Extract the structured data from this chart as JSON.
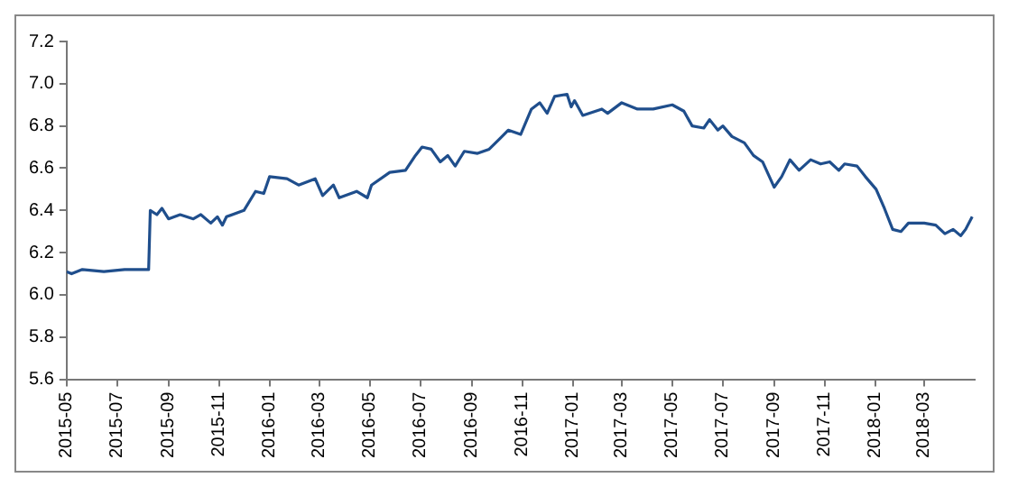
{
  "chart_data": {
    "type": "line",
    "x": [
      "2015-05-01",
      "2015-05-07",
      "2015-05-20",
      "2015-06-15",
      "2015-07-10",
      "2015-08-08",
      "2015-08-10",
      "2015-08-18",
      "2015-08-24",
      "2015-09-01",
      "2015-09-15",
      "2015-10-01",
      "2015-10-10",
      "2015-10-22",
      "2015-10-30",
      "2015-11-05",
      "2015-11-10",
      "2015-12-01",
      "2015-12-15",
      "2015-12-25",
      "2016-01-01",
      "2016-01-22",
      "2016-02-05",
      "2016-02-25",
      "2016-03-05",
      "2016-03-18",
      "2016-03-25",
      "2016-04-15",
      "2016-04-28",
      "2016-05-03",
      "2016-05-25",
      "2016-06-13",
      "2016-06-25",
      "2016-07-03",
      "2016-07-14",
      "2016-07-25",
      "2016-08-03",
      "2016-08-12",
      "2016-08-23",
      "2016-09-08",
      "2016-09-15",
      "2016-09-22",
      "2016-10-05",
      "2016-10-15",
      "2016-10-30",
      "2016-11-12",
      "2016-11-22",
      "2016-12-01",
      "2016-12-10",
      "2016-12-25",
      "2016-12-30",
      "2017-01-03",
      "2017-01-13",
      "2017-02-05",
      "2017-02-12",
      "2017-03-01",
      "2017-03-20",
      "2017-04-08",
      "2017-05-01",
      "2017-05-15",
      "2017-05-25",
      "2017-06-08",
      "2017-06-15",
      "2017-06-25",
      "2017-07-01",
      "2017-07-12",
      "2017-07-27",
      "2017-08-07",
      "2017-08-18",
      "2017-09-01",
      "2017-09-10",
      "2017-09-20",
      "2017-10-01",
      "2017-10-15",
      "2017-10-27",
      "2017-11-07",
      "2017-11-18",
      "2017-11-25",
      "2017-12-10",
      "2017-12-20",
      "2018-01-02",
      "2018-01-12",
      "2018-01-22",
      "2018-02-01",
      "2018-02-10",
      "2018-03-01",
      "2018-03-15",
      "2018-03-26",
      "2018-04-05",
      "2018-04-14",
      "2018-04-20",
      "2018-04-28"
    ],
    "series": [
      {
        "color": "#1f4e8c",
        "values": [
          6.11,
          6.1,
          6.12,
          6.11,
          6.12,
          6.12,
          6.4,
          6.38,
          6.41,
          6.36,
          6.38,
          6.36,
          6.38,
          6.34,
          6.37,
          6.33,
          6.37,
          6.4,
          6.49,
          6.48,
          6.56,
          6.55,
          6.52,
          6.55,
          6.47,
          6.52,
          6.46,
          6.49,
          6.46,
          6.52,
          6.58,
          6.59,
          6.66,
          6.7,
          6.69,
          6.63,
          6.66,
          6.61,
          6.68,
          6.67,
          6.68,
          6.69,
          6.74,
          6.78,
          6.76,
          6.88,
          6.91,
          6.86,
          6.94,
          6.95,
          6.89,
          6.92,
          6.85,
          6.88,
          6.86,
          6.91,
          6.88,
          6.88,
          6.9,
          6.87,
          6.8,
          6.79,
          6.83,
          6.78,
          6.8,
          6.75,
          6.72,
          6.66,
          6.63,
          6.51,
          6.56,
          6.64,
          6.59,
          6.64,
          6.62,
          6.63,
          6.59,
          6.62,
          6.61,
          6.56,
          6.5,
          6.41,
          6.31,
          6.3,
          6.34,
          6.34,
          6.33,
          6.29,
          6.31,
          6.28,
          6.31,
          6.37
        ]
      }
    ],
    "xlim": [
      "2015-05",
      "2018-05"
    ],
    "xticks": [
      "2015-05",
      "2015-07",
      "2015-09",
      "2015-11",
      "2016-01",
      "2016-03",
      "2016-05",
      "2016-07",
      "2016-09",
      "2016-11",
      "2017-01",
      "2017-03",
      "2017-05",
      "2017-07",
      "2017-09",
      "2017-11",
      "2018-01",
      "2018-03"
    ],
    "ylim": [
      5.6,
      7.2
    ],
    "yticks": [
      5.6,
      5.8,
      {
        "value": 6,
        "label": "6.0"
      },
      6.2,
      6.4,
      6.6,
      6.8,
      {
        "value": 7,
        "label": "7.0"
      },
      7.2
    ],
    "grid": false,
    "legend": false,
    "marker": "none",
    "line_style": "solid"
  }
}
